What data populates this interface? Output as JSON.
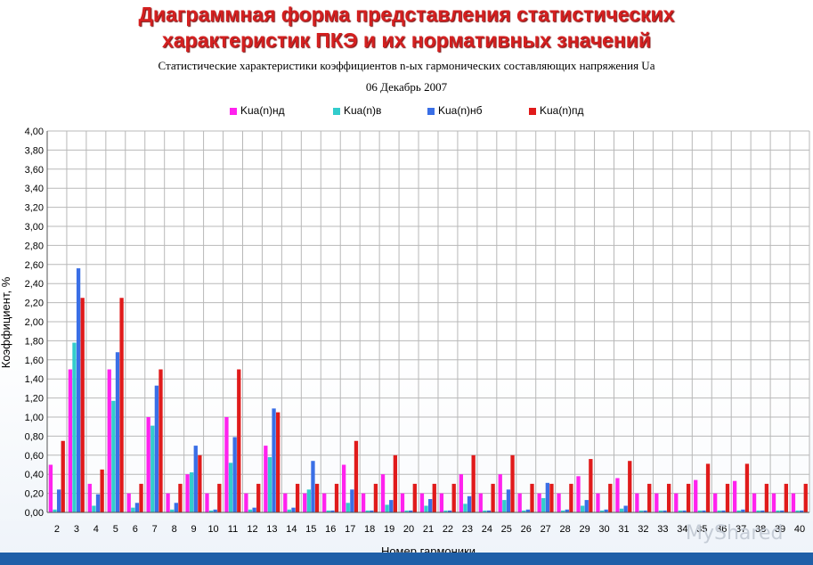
{
  "slide": {
    "headline_line1": "Диаграммная форма представления статистических",
    "headline_line2": "характеристик ПКЭ и их нормативных значений",
    "watermark": "MyShared"
  },
  "chart_data": {
    "type": "bar",
    "title": "Статистические характеристики коэффициентов n-ых гармонических составляющих напряжения Ua",
    "subtitle": "06 Декабрь 2007",
    "xlabel": "Номер гармоники",
    "ylabel": "Коэффициент, %",
    "ylim": [
      0,
      4.0
    ],
    "ytick_step": 0.2,
    "yticks": [
      "0,00",
      "0,20",
      "0,40",
      "0,60",
      "0,80",
      "1,00",
      "1,20",
      "1,40",
      "1,60",
      "1,80",
      "2,00",
      "2,20",
      "2,40",
      "2,60",
      "2,80",
      "3,00",
      "3,20",
      "3,40",
      "3,60",
      "3,80",
      "4,00"
    ],
    "grid": true,
    "legend_position": "top",
    "categories": [
      "2",
      "3",
      "4",
      "5",
      "6",
      "7",
      "8",
      "9",
      "10",
      "11",
      "12",
      "13",
      "14",
      "15",
      "16",
      "17",
      "18",
      "19",
      "20",
      "21",
      "22",
      "23",
      "24",
      "25",
      "26",
      "27",
      "28",
      "29",
      "30",
      "31",
      "32",
      "33",
      "34",
      "35",
      "36",
      "37",
      "38",
      "39",
      "40"
    ],
    "series": [
      {
        "name": "Kua(n)нд",
        "color": "#ff22ee",
        "values": [
          0.5,
          1.5,
          0.3,
          1.5,
          0.2,
          1.0,
          0.2,
          0.4,
          0.2,
          1.0,
          0.2,
          0.7,
          0.2,
          0.2,
          0.2,
          0.5,
          0.2,
          0.4,
          0.2,
          0.2,
          0.2,
          0.4,
          0.2,
          0.4,
          0.2,
          0.2,
          0.2,
          0.38,
          0.2,
          0.36,
          0.2,
          0.2,
          0.2,
          0.34,
          0.2,
          0.33,
          0.2,
          0.2,
          0.2
        ]
      },
      {
        "name": "Kua(n)в",
        "color": "#33cccc",
        "values": [
          0.03,
          1.78,
          0.07,
          1.17,
          0.05,
          0.91,
          0.03,
          0.42,
          0.02,
          0.52,
          0.03,
          0.58,
          0.03,
          0.24,
          0.02,
          0.1,
          0.02,
          0.08,
          0.02,
          0.07,
          0.02,
          0.09,
          0.02,
          0.13,
          0.02,
          0.15,
          0.02,
          0.07,
          0.02,
          0.04,
          0.02,
          0.02,
          0.02,
          0.02,
          0.02,
          0.02,
          0.02,
          0.02,
          0.02
        ]
      },
      {
        "name": "Kua(n)нб",
        "color": "#3a6fe6",
        "values": [
          0.24,
          2.56,
          0.19,
          1.68,
          0.1,
          1.33,
          0.1,
          0.7,
          0.03,
          0.79,
          0.05,
          1.09,
          0.05,
          0.54,
          0.02,
          0.24,
          0.02,
          0.13,
          0.02,
          0.14,
          0.02,
          0.17,
          0.02,
          0.24,
          0.03,
          0.31,
          0.03,
          0.13,
          0.03,
          0.07,
          0.02,
          0.02,
          0.02,
          0.02,
          0.02,
          0.03,
          0.02,
          0.02,
          0.02
        ]
      },
      {
        "name": "Kua(n)пд",
        "color": "#e01b1b",
        "values": [
          0.75,
          2.25,
          0.45,
          2.25,
          0.3,
          1.5,
          0.3,
          0.6,
          0.3,
          1.5,
          0.3,
          1.05,
          0.3,
          0.3,
          0.3,
          0.75,
          0.3,
          0.6,
          0.3,
          0.3,
          0.3,
          0.6,
          0.3,
          0.6,
          0.3,
          0.3,
          0.3,
          0.56,
          0.3,
          0.54,
          0.3,
          0.3,
          0.3,
          0.51,
          0.3,
          0.51,
          0.3,
          0.3,
          0.3
        ]
      }
    ]
  }
}
